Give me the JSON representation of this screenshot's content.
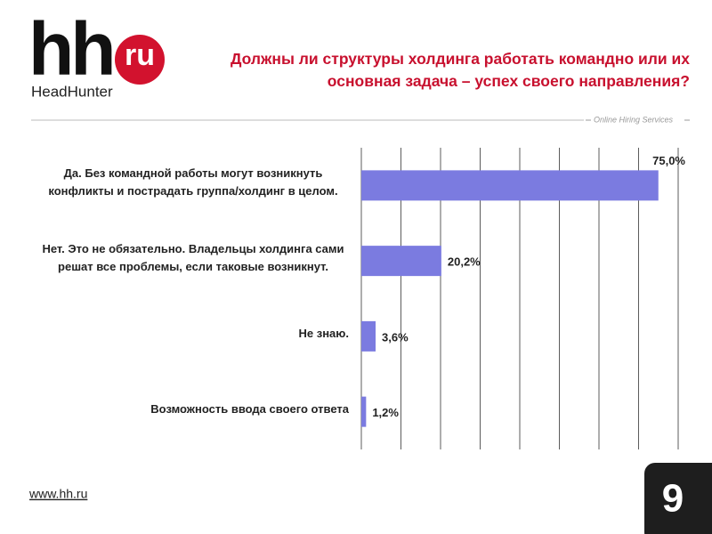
{
  "logo": {
    "mark": "hh",
    "badge": "ru",
    "name": "HeadHunter"
  },
  "tagline": "Online Hiring Services",
  "footer_url": "www.hh.ru",
  "page_number": "9",
  "chart_data": {
    "type": "barh",
    "title": "Должны ли структуры холдинга работать командно или их основная задача – успех своего направления?",
    "categories": [
      "Да. Без командной работы могут возникнуть конфликты и пострадать группа/холдинг в целом.",
      "Нет. Это не обязательно. Владельцы холдинга сами решат все проблемы, если таковые возникнут.",
      "Не знаю.",
      "Возможность ввода своего ответа"
    ],
    "values": [
      75.0,
      20.2,
      3.6,
      1.2
    ],
    "value_labels": [
      "75,0%",
      "20,2%",
      "3,6%",
      "1,2%"
    ],
    "color": "#7b7be0",
    "xlim": [
      0,
      80
    ],
    "xticks": [
      0,
      10,
      20,
      30,
      40,
      50,
      60,
      70,
      80
    ],
    "grid": true
  }
}
